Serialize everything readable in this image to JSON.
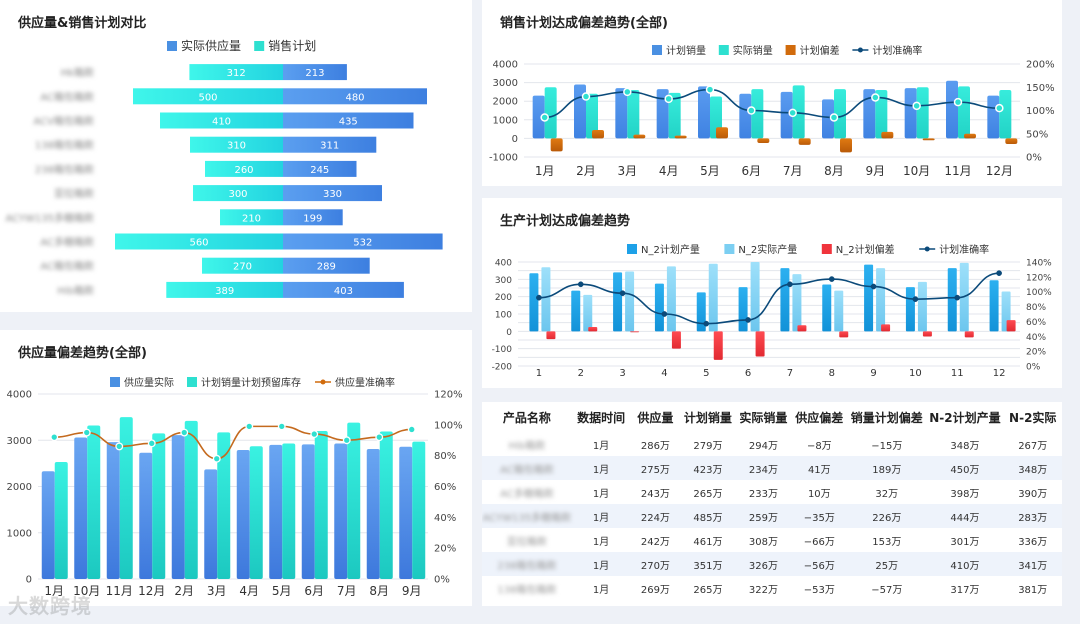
{
  "colors": {
    "blue": "#4a90e2",
    "cyan": "#2ee0d0",
    "orange": "#d16b0c",
    "navy": "#0b4a7a",
    "red": "#f0343c",
    "lightblue": "#7ccff2",
    "brightblue": "#1da1e8"
  },
  "watermark": "大数跨境",
  "charts": {
    "butterfly": {
      "title": "供应量&销售计划对比",
      "legend": [
        "实际供应量",
        "销售计划"
      ],
      "rows": [
        {
          "name": "Hk箱款",
          "plan": 312,
          "actual": 213
        },
        {
          "name": "AC箱包箱款",
          "plan": 500,
          "actual": 480
        },
        {
          "name": "ACV箱包箱款",
          "plan": 410,
          "actual": 435
        },
        {
          "name": "138箱包箱款",
          "plan": 310,
          "actual": 311
        },
        {
          "name": "238箱包箱款",
          "plan": 260,
          "actual": 245
        },
        {
          "name": "亚拉箱款",
          "plan": 300,
          "actual": 330
        },
        {
          "name": "ACYW135多糖箱款",
          "plan": 210,
          "actual": 199
        },
        {
          "name": "AC多糖箱款",
          "plan": 560,
          "actual": 532
        },
        {
          "name": "AC箱包箱款",
          "plan": 270,
          "actual": 289
        },
        {
          "name": "Hib箱款",
          "plan": 389,
          "actual": 403
        }
      ]
    },
    "sales": {
      "title": "销售计划达成偏差趋势(全部)",
      "legend": [
        "计划销量",
        "实际销量",
        "计划偏差",
        "计划准确率"
      ],
      "categories": [
        "1月",
        "2月",
        "3月",
        "4月",
        "5月",
        "6月",
        "7月",
        "8月",
        "9月",
        "10月",
        "11月",
        "12月"
      ],
      "yLeft": {
        "min": -1000,
        "max": 4000,
        "ticks": [
          -1000,
          0,
          1000,
          2000,
          3000,
          4000
        ]
      },
      "yRight": {
        "min": 0,
        "max": 200,
        "ticks": [
          "0%",
          "50%",
          "100%",
          "150%",
          "200%"
        ]
      },
      "series": {
        "plan": [
          2300,
          2900,
          2700,
          2650,
          2800,
          2400,
          2500,
          2100,
          2650,
          2700,
          3100,
          2300
        ],
        "actual": [
          2750,
          2400,
          2600,
          2450,
          2250,
          2650,
          2850,
          2650,
          2600,
          2750,
          2800,
          2600
        ],
        "dev": [
          -700,
          450,
          200,
          150,
          600,
          -250,
          -350,
          -750,
          350,
          -100,
          250,
          -300
        ],
        "rate": [
          85,
          130,
          140,
          125,
          145,
          100,
          95,
          85,
          128,
          110,
          118,
          105
        ]
      }
    },
    "production": {
      "title": "生产计划达成偏差趋势",
      "legend": [
        "N_2计划产量",
        "N_2实际产量",
        "N_2计划偏差",
        "计划准确率"
      ],
      "categories": [
        "1",
        "2",
        "3",
        "4",
        "5",
        "6",
        "7",
        "8",
        "9",
        "10",
        "11",
        "12"
      ],
      "yLeft": {
        "min": -200,
        "max": 400,
        "ticks": [
          -200,
          -150,
          -100,
          -50,
          0,
          50,
          100,
          150,
          200,
          250,
          300,
          350,
          400
        ]
      },
      "yRight": {
        "min": 0,
        "max": 140,
        "ticks": [
          "0%",
          "20%",
          "40%",
          "60%",
          "80%",
          "100%",
          "120%",
          "140%"
        ]
      },
      "series": {
        "plan": [
          335,
          235,
          340,
          275,
          225,
          255,
          365,
          270,
          385,
          255,
          365,
          295
        ],
        "actual": [
          370,
          210,
          345,
          375,
          390,
          400,
          330,
          235,
          365,
          285,
          395,
          230
        ],
        "dev": [
          -45,
          25,
          -5,
          -100,
          -165,
          -145,
          35,
          -35,
          40,
          -30,
          -35,
          65
        ],
        "rate": [
          92,
          110,
          98,
          70,
          57,
          62,
          110,
          117,
          107,
          90,
          92,
          125
        ]
      }
    },
    "supply": {
      "title": "供应量偏差趋势(全部)",
      "legend": [
        "供应量实际",
        "计划销量计划预留库存",
        "供应量准确率"
      ],
      "categories": [
        "1月",
        "10月",
        "11月",
        "12月",
        "2月",
        "3月",
        "4月",
        "5月",
        "6月",
        "7月",
        "8月",
        "9月"
      ],
      "yLeft": {
        "min": 0,
        "max": 4000,
        "ticks": [
          0,
          1000,
          2000,
          3000,
          4000
        ]
      },
      "yRight": {
        "min": 0,
        "max": 120,
        "ticks": [
          "0%",
          "20%",
          "40%",
          "60%",
          "80%",
          "100%",
          "120%"
        ]
      },
      "series": {
        "actual": [
          2330,
          3060,
          2960,
          2730,
          3110,
          2370,
          2790,
          2900,
          2910,
          2930,
          2810,
          2860
        ],
        "plan": [
          2530,
          3320,
          3500,
          3150,
          3420,
          3170,
          2870,
          2930,
          3200,
          3380,
          3190,
          2970
        ],
        "rate": [
          92,
          95,
          86,
          88,
          95,
          78,
          99,
          99,
          94,
          90,
          92,
          97
        ]
      }
    }
  },
  "table": {
    "headers": [
      "产品名称",
      "数据时间",
      "供应量",
      "计划销量",
      "实际销量",
      "供应偏差",
      "销量计划偏差",
      "N-2计划产量",
      "N-2实际"
    ],
    "rows": [
      [
        "Hib箱款",
        "1月",
        "286万",
        "279万",
        "294万",
        "−8万",
        "−15万",
        "348万",
        "267万"
      ],
      [
        "AC箱包箱款",
        "1月",
        "275万",
        "423万",
        "234万",
        "41万",
        "189万",
        "450万",
        "348万"
      ],
      [
        "AC多糖箱款",
        "1月",
        "243万",
        "265万",
        "233万",
        "10万",
        "32万",
        "398万",
        "390万"
      ],
      [
        "ACYW135多糖箱款",
        "1月",
        "224万",
        "485万",
        "259万",
        "−35万",
        "226万",
        "444万",
        "283万"
      ],
      [
        "亚拉箱款",
        "1月",
        "242万",
        "461万",
        "308万",
        "−66万",
        "153万",
        "301万",
        "336万"
      ],
      [
        "238箱包箱款",
        "1月",
        "270万",
        "351万",
        "326万",
        "−56万",
        "25万",
        "410万",
        "341万"
      ],
      [
        "138箱包箱款",
        "1月",
        "269万",
        "265万",
        "322万",
        "−53万",
        "−57万",
        "317万",
        "381万"
      ]
    ]
  }
}
